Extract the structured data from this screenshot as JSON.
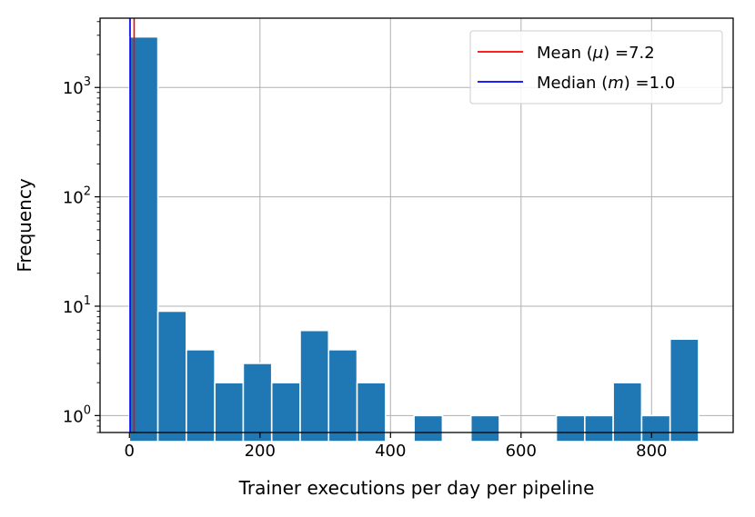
{
  "chart_data": {
    "type": "bar",
    "title": "",
    "xlabel": "Trainer executions per day per pipeline",
    "ylabel": "Frequency",
    "xlim": [
      -45,
      925
    ],
    "ylim": [
      0.7,
      4300
    ],
    "yscale": "log",
    "grid": true,
    "bin_edges": [
      0,
      43.6,
      87.2,
      130.8,
      174.4,
      218,
      261.6,
      305.2,
      348.8,
      392.4,
      436,
      479.6,
      523.2,
      566.8,
      610.4,
      654,
      697.6,
      741.2,
      784.8,
      828.4,
      872
    ],
    "counts": [
      2900,
      9,
      4,
      2,
      3,
      2,
      6,
      4,
      2,
      0,
      1,
      0,
      1,
      0,
      0,
      1,
      1,
      2,
      1,
      5
    ],
    "bar_color": "#1f77b4",
    "x_ticks": [
      {
        "value": 0,
        "label": "0"
      },
      {
        "value": 200,
        "label": "200"
      },
      {
        "value": 400,
        "label": "400"
      },
      {
        "value": 600,
        "label": "600"
      },
      {
        "value": 800,
        "label": "800"
      }
    ],
    "y_ticks": [
      {
        "value": 1,
        "base": "10",
        "exp": "0"
      },
      {
        "value": 10,
        "base": "10",
        "exp": "1"
      },
      {
        "value": 100,
        "base": "10",
        "exp": "2"
      },
      {
        "value": 1000,
        "base": "10",
        "exp": "3"
      }
    ],
    "vlines": [
      {
        "name": "Mean",
        "symbol": "μ",
        "value": 7.2,
        "value_label": "7.2",
        "color": "#ff0000"
      },
      {
        "name": "Median",
        "symbol": "m",
        "value": 1.0,
        "value_label": "1.0",
        "color": "#0000ff"
      }
    ],
    "legend": {
      "position": "top-right",
      "entries": [
        {
          "prefix": "Mean (",
          "symbol": "μ",
          "suffix": ") =7.2",
          "color": "#ff0000"
        },
        {
          "prefix": "Median (",
          "symbol": "m",
          "suffix": ") =1.0",
          "color": "#0000ff"
        }
      ]
    }
  }
}
